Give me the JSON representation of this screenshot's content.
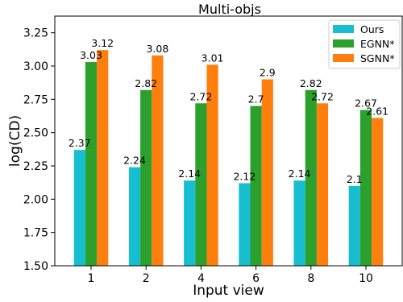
{
  "chart_data": {
    "type": "bar",
    "title": "Multi-objs",
    "xlabel": "Input view",
    "ylabel": "log(CD)",
    "categories": [
      "1",
      "2",
      "4",
      "6",
      "8",
      "10"
    ],
    "ylim": [
      1.5,
      3.375
    ],
    "yticks": [
      "1.50",
      "1.75",
      "2.00",
      "2.25",
      "2.50",
      "2.75",
      "3.00",
      "3.25"
    ],
    "legend_position": "top-right",
    "grid": false,
    "series": [
      {
        "name": "Ours",
        "color": "#17becf",
        "values": [
          2.37,
          2.24,
          2.14,
          2.12,
          2.14,
          2.1
        ],
        "labels": [
          "2.37",
          "2.24",
          "2.14",
          "2.12",
          "2.14",
          "2.1"
        ]
      },
      {
        "name": "EGNN*",
        "color": "#2ca02c",
        "values": [
          3.03,
          2.82,
          2.72,
          2.7,
          2.82,
          2.67
        ],
        "labels": [
          "3.03",
          "2.82",
          "2.72",
          "2.7",
          "2.82",
          "2.67"
        ]
      },
      {
        "name": "SGNN*",
        "color": "#ff7f0e",
        "values": [
          3.12,
          3.08,
          3.01,
          2.9,
          2.72,
          2.61
        ],
        "labels": [
          "3.12",
          "3.08",
          "3.01",
          "2.9",
          "2.72",
          "2.61"
        ]
      }
    ]
  }
}
